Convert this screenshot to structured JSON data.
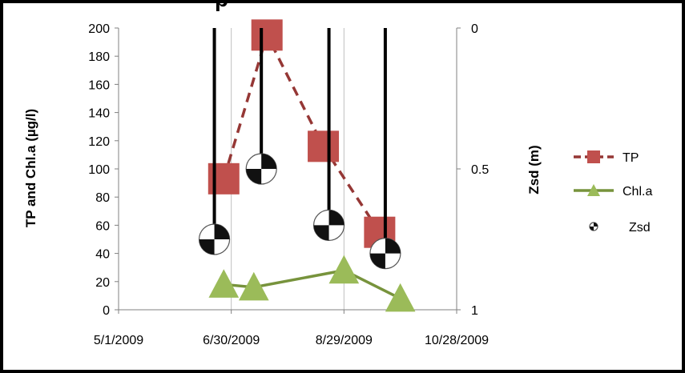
{
  "chart_data": {
    "type": "line",
    "title_fragment": "p",
    "x_tick_labels": [
      "5/1/2009",
      "6/30/2009",
      "8/29/2009",
      "10/28/2009"
    ],
    "xlim": [
      "2009-05-01",
      "2009-10-28"
    ],
    "ylabel_left": "TP and Chl.a (µg/l)",
    "ylabel_right": "Zsd (m)",
    "ylim_left": [
      0,
      200
    ],
    "ylim_right": [
      0,
      1
    ],
    "right_axis_inverted": true,
    "y_ticks_left": [
      "0",
      "20",
      "40",
      "60",
      "80",
      "100",
      "120",
      "140",
      "160",
      "180",
      "200"
    ],
    "y_ticks_right": [
      "0",
      "0.5",
      "1"
    ],
    "grid_vertical": true,
    "legend_position": "right",
    "series": [
      {
        "name": "TP",
        "axis": "left",
        "color": "#953735",
        "marker": "square",
        "line": "dashed",
        "x": [
          "2009-06-26",
          "2009-07-19",
          "2009-08-18",
          "2009-09-17"
        ],
        "y": [
          93,
          195,
          116,
          55
        ]
      },
      {
        "name": "Chl.a",
        "axis": "left",
        "color": "#77933c",
        "marker": "triangle",
        "line": "solid",
        "x": [
          "2009-06-26",
          "2009-07-12",
          "2009-08-29",
          "2009-09-28"
        ],
        "y": [
          18,
          16,
          28,
          8
        ]
      },
      {
        "name": "Zsd",
        "axis": "right",
        "color": "#000000",
        "marker": "secchi-disk",
        "line": "none",
        "x": [
          "2009-06-21",
          "2009-07-16",
          "2009-08-21",
          "2009-09-20"
        ],
        "y": [
          0.75,
          0.5,
          0.7,
          0.8
        ]
      }
    ]
  }
}
